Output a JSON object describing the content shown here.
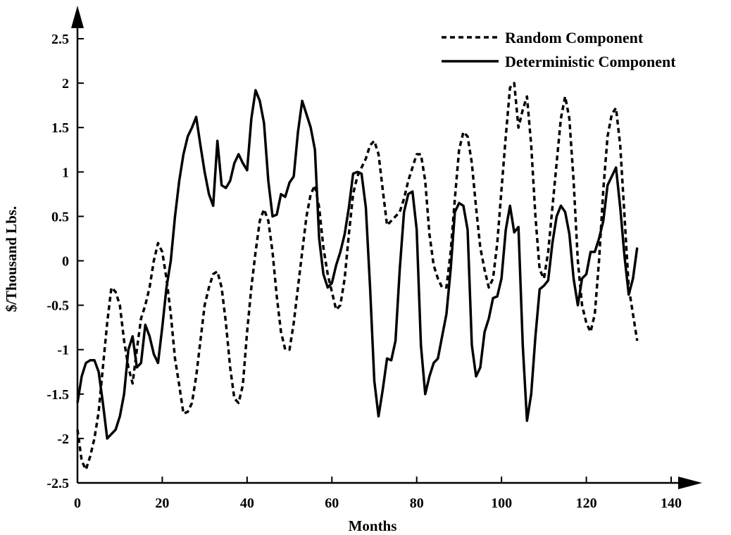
{
  "chart_data": {
    "type": "line",
    "xlabel": "Months",
    "ylabel": "$/Thousand Lbs.",
    "xlim": [
      0,
      140
    ],
    "ylim": [
      -2.5,
      2.5
    ],
    "x_ticks": [
      "0",
      "20",
      "40",
      "60",
      "80",
      "100",
      "120",
      "140"
    ],
    "y_ticks": [
      "2.5",
      "2",
      "1.5",
      "1",
      "0.5",
      "0",
      "-0.5",
      "-1",
      "-1.5",
      "-2",
      "-2.5"
    ],
    "legend_position": "top-right",
    "series": [
      {
        "name": "Random Component",
        "style": "dashed",
        "points": [
          [
            0,
            -1.9
          ],
          [
            1,
            -2.25
          ],
          [
            2,
            -2.35
          ],
          [
            3,
            -2.2
          ],
          [
            4,
            -2.0
          ],
          [
            5,
            -1.7
          ],
          [
            6,
            -1.2
          ],
          [
            7,
            -0.7
          ],
          [
            8,
            -0.3
          ],
          [
            9,
            -0.35
          ],
          [
            10,
            -0.5
          ],
          [
            11,
            -0.9
          ],
          [
            12,
            -1.2
          ],
          [
            13,
            -1.38
          ],
          [
            14,
            -1.0
          ],
          [
            15,
            -0.65
          ],
          [
            16,
            -0.5
          ],
          [
            17,
            -0.3
          ],
          [
            18,
            0.0
          ],
          [
            19,
            0.2
          ],
          [
            20,
            0.1
          ],
          [
            21,
            -0.2
          ],
          [
            22,
            -0.6
          ],
          [
            23,
            -1.1
          ],
          [
            24,
            -1.4
          ],
          [
            25,
            -1.72
          ],
          [
            26,
            -1.7
          ],
          [
            27,
            -1.6
          ],
          [
            28,
            -1.3
          ],
          [
            29,
            -0.9
          ],
          [
            30,
            -0.5
          ],
          [
            31,
            -0.3
          ],
          [
            32,
            -0.15
          ],
          [
            33,
            -0.12
          ],
          [
            34,
            -0.3
          ],
          [
            35,
            -0.7
          ],
          [
            36,
            -1.2
          ],
          [
            37,
            -1.55
          ],
          [
            38,
            -1.6
          ],
          [
            39,
            -1.4
          ],
          [
            40,
            -0.8
          ],
          [
            41,
            -0.3
          ],
          [
            42,
            0.1
          ],
          [
            43,
            0.45
          ],
          [
            44,
            0.58
          ],
          [
            45,
            0.45
          ],
          [
            46,
            0.1
          ],
          [
            47,
            -0.4
          ],
          [
            48,
            -0.8
          ],
          [
            49,
            -1.0
          ],
          [
            50,
            -1.0
          ],
          [
            51,
            -0.7
          ],
          [
            52,
            -0.3
          ],
          [
            53,
            0.1
          ],
          [
            54,
            0.5
          ],
          [
            55,
            0.75
          ],
          [
            56,
            0.85
          ],
          [
            57,
            0.6
          ],
          [
            58,
            0.15
          ],
          [
            59,
            -0.15
          ],
          [
            60,
            -0.35
          ],
          [
            61,
            -0.55
          ],
          [
            62,
            -0.5
          ],
          [
            63,
            -0.2
          ],
          [
            64,
            0.3
          ],
          [
            65,
            0.75
          ],
          [
            66,
            0.95
          ],
          [
            67,
            1.05
          ],
          [
            68,
            1.15
          ],
          [
            69,
            1.3
          ],
          [
            70,
            1.35
          ],
          [
            71,
            1.2
          ],
          [
            72,
            0.8
          ],
          [
            73,
            0.4
          ],
          [
            74,
            0.45
          ],
          [
            75,
            0.5
          ],
          [
            76,
            0.55
          ],
          [
            77,
            0.7
          ],
          [
            78,
            0.9
          ],
          [
            79,
            1.05
          ],
          [
            80,
            1.2
          ],
          [
            81,
            1.2
          ],
          [
            82,
            0.9
          ],
          [
            83,
            0.3
          ],
          [
            84,
            -0.05
          ],
          [
            85,
            -0.2
          ],
          [
            86,
            -0.3
          ],
          [
            87,
            -0.3
          ],
          [
            88,
            0.1
          ],
          [
            89,
            0.7
          ],
          [
            90,
            1.25
          ],
          [
            91,
            1.45
          ],
          [
            92,
            1.4
          ],
          [
            93,
            1.1
          ],
          [
            94,
            0.6
          ],
          [
            95,
            0.15
          ],
          [
            96,
            -0.1
          ],
          [
            97,
            -0.3
          ],
          [
            98,
            -0.2
          ],
          [
            99,
            0.2
          ],
          [
            100,
            0.8
          ],
          [
            101,
            1.4
          ],
          [
            102,
            1.95
          ],
          [
            103,
            2.0
          ],
          [
            104,
            1.5
          ],
          [
            105,
            1.7
          ],
          [
            106,
            1.85
          ],
          [
            107,
            1.3
          ],
          [
            108,
            0.5
          ],
          [
            109,
            -0.1
          ],
          [
            110,
            -0.2
          ],
          [
            111,
            0.1
          ],
          [
            112,
            0.6
          ],
          [
            113,
            1.1
          ],
          [
            114,
            1.6
          ],
          [
            115,
            1.85
          ],
          [
            116,
            1.6
          ],
          [
            117,
            0.9
          ],
          [
            118,
            0.0
          ],
          [
            119,
            -0.5
          ],
          [
            120,
            -0.7
          ],
          [
            121,
            -0.8
          ],
          [
            122,
            -0.6
          ],
          [
            123,
            0.0
          ],
          [
            124,
            0.8
          ],
          [
            125,
            1.4
          ],
          [
            126,
            1.65
          ],
          [
            127,
            1.72
          ],
          [
            128,
            1.3
          ],
          [
            129,
            0.5
          ],
          [
            130,
            -0.3
          ],
          [
            131,
            -0.6
          ],
          [
            132,
            -0.9
          ]
        ]
      },
      {
        "name": "Deterministic Component",
        "style": "solid",
        "points": [
          [
            0,
            -1.6
          ],
          [
            1,
            -1.3
          ],
          [
            2,
            -1.15
          ],
          [
            3,
            -1.12
          ],
          [
            4,
            -1.12
          ],
          [
            5,
            -1.25
          ],
          [
            6,
            -1.6
          ],
          [
            7,
            -2.0
          ],
          [
            8,
            -1.95
          ],
          [
            9,
            -1.9
          ],
          [
            10,
            -1.75
          ],
          [
            11,
            -1.5
          ],
          [
            12,
            -1.0
          ],
          [
            13,
            -0.85
          ],
          [
            14,
            -1.2
          ],
          [
            15,
            -1.15
          ],
          [
            16,
            -0.72
          ],
          [
            17,
            -0.85
          ],
          [
            18,
            -1.05
          ],
          [
            19,
            -1.15
          ],
          [
            20,
            -0.75
          ],
          [
            21,
            -0.3
          ],
          [
            22,
            0.0
          ],
          [
            23,
            0.5
          ],
          [
            24,
            0.9
          ],
          [
            25,
            1.2
          ],
          [
            26,
            1.4
          ],
          [
            27,
            1.5
          ],
          [
            28,
            1.62
          ],
          [
            29,
            1.3
          ],
          [
            30,
            1.0
          ],
          [
            31,
            0.75
          ],
          [
            32,
            0.62
          ],
          [
            33,
            1.35
          ],
          [
            34,
            0.85
          ],
          [
            35,
            0.82
          ],
          [
            36,
            0.9
          ],
          [
            37,
            1.1
          ],
          [
            38,
            1.2
          ],
          [
            39,
            1.1
          ],
          [
            40,
            1.02
          ],
          [
            41,
            1.6
          ],
          [
            42,
            1.92
          ],
          [
            43,
            1.8
          ],
          [
            44,
            1.55
          ],
          [
            45,
            0.9
          ],
          [
            46,
            0.5
          ],
          [
            47,
            0.52
          ],
          [
            48,
            0.75
          ],
          [
            49,
            0.72
          ],
          [
            50,
            0.88
          ],
          [
            51,
            0.95
          ],
          [
            52,
            1.45
          ],
          [
            53,
            1.8
          ],
          [
            54,
            1.65
          ],
          [
            55,
            1.5
          ],
          [
            56,
            1.25
          ],
          [
            57,
            0.25
          ],
          [
            58,
            -0.15
          ],
          [
            59,
            -0.3
          ],
          [
            60,
            -0.25
          ],
          [
            61,
            -0.05
          ],
          [
            62,
            0.1
          ],
          [
            63,
            0.3
          ],
          [
            64,
            0.6
          ],
          [
            65,
            0.98
          ],
          [
            66,
            1.0
          ],
          [
            67,
            0.98
          ],
          [
            68,
            0.6
          ],
          [
            69,
            -0.3
          ],
          [
            70,
            -1.35
          ],
          [
            71,
            -1.75
          ],
          [
            72,
            -1.45
          ],
          [
            73,
            -1.1
          ],
          [
            74,
            -1.12
          ],
          [
            75,
            -0.9
          ],
          [
            76,
            -0.1
          ],
          [
            77,
            0.55
          ],
          [
            78,
            0.75
          ],
          [
            79,
            0.78
          ],
          [
            80,
            0.35
          ],
          [
            81,
            -0.95
          ],
          [
            82,
            -1.5
          ],
          [
            83,
            -1.3
          ],
          [
            84,
            -1.15
          ],
          [
            85,
            -1.1
          ],
          [
            86,
            -0.85
          ],
          [
            87,
            -0.6
          ],
          [
            88,
            -0.1
          ],
          [
            89,
            0.55
          ],
          [
            90,
            0.65
          ],
          [
            91,
            0.62
          ],
          [
            92,
            0.35
          ],
          [
            93,
            -0.95
          ],
          [
            94,
            -1.3
          ],
          [
            95,
            -1.2
          ],
          [
            96,
            -0.8
          ],
          [
            97,
            -0.65
          ],
          [
            98,
            -0.42
          ],
          [
            99,
            -0.4
          ],
          [
            100,
            -0.2
          ],
          [
            101,
            0.35
          ],
          [
            102,
            0.62
          ],
          [
            103,
            0.32
          ],
          [
            104,
            0.38
          ],
          [
            105,
            -0.95
          ],
          [
            106,
            -1.8
          ],
          [
            107,
            -1.5
          ],
          [
            108,
            -0.85
          ],
          [
            109,
            -0.32
          ],
          [
            110,
            -0.28
          ],
          [
            111,
            -0.22
          ],
          [
            112,
            0.2
          ],
          [
            113,
            0.5
          ],
          [
            114,
            0.62
          ],
          [
            115,
            0.55
          ],
          [
            116,
            0.3
          ],
          [
            117,
            -0.2
          ],
          [
            118,
            -0.5
          ],
          [
            119,
            -0.2
          ],
          [
            120,
            -0.15
          ],
          [
            121,
            0.1
          ],
          [
            122,
            0.1
          ],
          [
            123,
            0.25
          ],
          [
            124,
            0.45
          ],
          [
            125,
            0.85
          ],
          [
            126,
            0.95
          ],
          [
            127,
            1.05
          ],
          [
            128,
            0.6
          ],
          [
            129,
            0.05
          ],
          [
            130,
            -0.38
          ],
          [
            131,
            -0.2
          ],
          [
            132,
            0.15
          ]
        ]
      }
    ]
  }
}
